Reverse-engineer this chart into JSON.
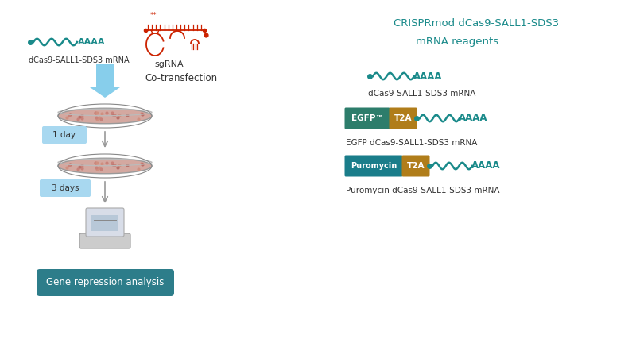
{
  "bg_color": "#ffffff",
  "teal": "#1a8a8a",
  "red": "#cc2200",
  "egfp_green": "#2d7d6b",
  "t2a_gold": "#b07d1a",
  "puro_teal": "#1a7d8a",
  "gene_repression_bg": "#2d7d8a",
  "label_bg": "#a8d8f0",
  "title_color": "#1a8a8a",
  "dark_text": "#333333",
  "arrow_blue": "#7ec8e3",
  "arrow_gray": "#999999",
  "workflow_title_line1": "CRISPRmod dCas9-SALL1-SDS3",
  "workflow_title_line2": "mRNA reagents",
  "mrna_label": "dCas9-SALL1-SDS3 mRNA",
  "egfp_label": "EGFP dCas9-SALL1-SDS3 mRNA",
  "puro_label": "Puromycin dCas9-SALL1-SDS3 mRNA",
  "cotransfection": "Co-transfection",
  "day1": "1 day",
  "day3": "3 days",
  "gene_repression": "Gene repression analysis",
  "sgrna_label": "sgRNA",
  "mrna_top_label": "dCas9-SALL1-SDS3 mRNA"
}
